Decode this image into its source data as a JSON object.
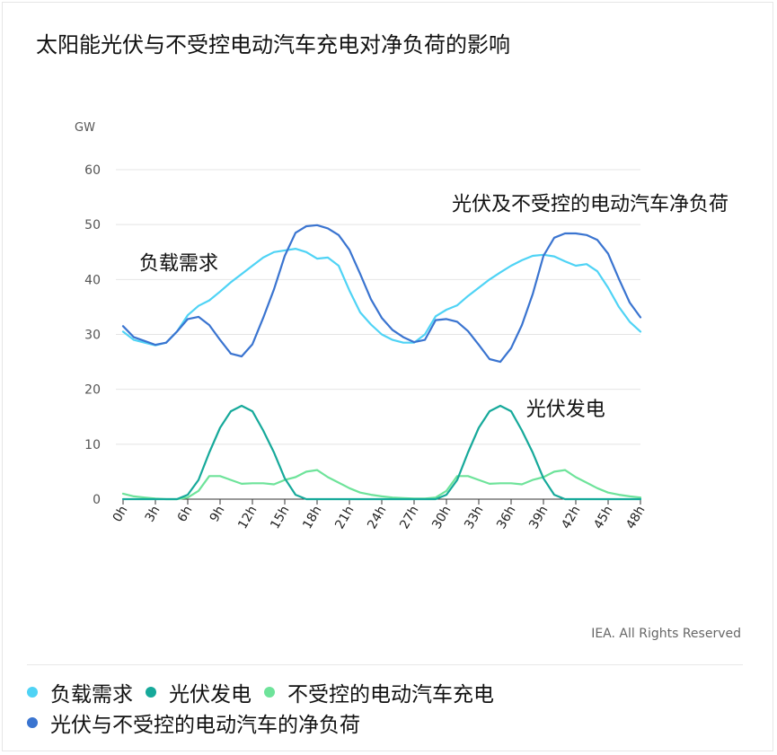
{
  "title": "太阳能光伏与不受控电动汽车充电对净负荷的影响",
  "credit": "IEA. All Rights Reserved",
  "legend": [
    {
      "label": "负载需求",
      "color": "#4fd3f5"
    },
    {
      "label": "光伏发电",
      "color": "#16a99a"
    },
    {
      "label": "不受控的电动汽车充电",
      "color": "#6ee39a"
    },
    {
      "label": "光伏与不受控的电动汽车的净负荷",
      "color": "#3a74d0"
    }
  ],
  "chart_data": {
    "type": "line",
    "ylabel": "GW",
    "ylim": [
      0,
      60
    ],
    "yticks": [
      0,
      10,
      20,
      30,
      40,
      50,
      60
    ],
    "xlim": [
      0,
      48
    ],
    "xticks": [
      "0h",
      "3h",
      "6h",
      "9h",
      "12h",
      "15h",
      "18h",
      "21h",
      "24h",
      "27h",
      "30h",
      "33h",
      "36h",
      "39h",
      "42h",
      "45h",
      "48h"
    ],
    "grid": true,
    "annotations": [
      {
        "text": "光伏及不受控的电动汽车净负荷",
        "x": 30.5,
        "y": 52.6
      },
      {
        "text": "负载需求",
        "x": 1.5,
        "y": 41.8
      },
      {
        "text": "光伏发电",
        "x": 37.4,
        "y": 15.2
      }
    ],
    "series": [
      {
        "name": "负载需求",
        "color": "#4fd3f5",
        "x": [
          0,
          1,
          2,
          3,
          4,
          5,
          6,
          7,
          8,
          9,
          10,
          11,
          12,
          13,
          14,
          15,
          16,
          17,
          18,
          19,
          20,
          21,
          22,
          23,
          24,
          25,
          26,
          27,
          28,
          29,
          30,
          31,
          32,
          33,
          34,
          35,
          36,
          37,
          38,
          39,
          40,
          41,
          42,
          43,
          44,
          45,
          46,
          47,
          48
        ],
        "values": [
          30.5,
          29,
          28.5,
          28,
          28.5,
          30.5,
          33.5,
          35.2,
          36.2,
          37.8,
          39.5,
          41,
          42.5,
          44,
          45,
          45.3,
          45.6,
          45,
          43.8,
          44,
          42.5,
          38,
          34,
          31.8,
          30,
          29,
          28.5,
          28.5,
          30,
          33.3,
          34.5,
          35.3,
          37,
          38.5,
          40,
          41.3,
          42.5,
          43.5,
          44.3,
          44.5,
          44.2,
          43.3,
          42.5,
          42.8,
          41.5,
          38.5,
          35,
          32.3,
          30.5
        ]
      },
      {
        "name": "光伏发电",
        "color": "#16a99a",
        "x": [
          0,
          1,
          2,
          3,
          4,
          5,
          6,
          7,
          8,
          9,
          10,
          11,
          12,
          13,
          14,
          15,
          16,
          17,
          18,
          19,
          20,
          21,
          22,
          23,
          24,
          25,
          26,
          27,
          28,
          29,
          30,
          31,
          32,
          33,
          34,
          35,
          36,
          37,
          38,
          39,
          40,
          41,
          42,
          43,
          44,
          45,
          46,
          47,
          48
        ],
        "values": [
          0,
          0,
          0,
          0,
          0,
          0,
          0.8,
          3.5,
          8.5,
          13,
          16,
          17,
          16,
          12.5,
          8.5,
          3.8,
          0.8,
          0,
          0,
          0,
          0,
          0,
          0,
          0,
          0,
          0,
          0,
          0,
          0,
          0,
          0.8,
          3.5,
          8.5,
          13,
          16,
          17,
          16,
          12.5,
          8.5,
          3.8,
          0.8,
          0,
          0,
          0,
          0,
          0,
          0,
          0,
          0
        ]
      },
      {
        "name": "不受控的电动汽车充电",
        "color": "#6ee39a",
        "x": [
          0,
          1,
          2,
          3,
          4,
          5,
          6,
          7,
          8,
          9,
          10,
          11,
          12,
          13,
          14,
          15,
          16,
          17,
          18,
          19,
          20,
          21,
          22,
          23,
          24,
          25,
          26,
          27,
          28,
          29,
          30,
          31,
          32,
          33,
          34,
          35,
          36,
          37,
          38,
          39,
          40,
          41,
          42,
          43,
          44,
          45,
          46,
          47,
          48
        ],
        "values": [
          1,
          0.5,
          0.3,
          0.1,
          0,
          0,
          0.3,
          1.5,
          4.2,
          4.2,
          3.5,
          2.8,
          2.9,
          2.9,
          2.7,
          3.5,
          4,
          5,
          5.3,
          4,
          3,
          2,
          1.2,
          0.8,
          0.5,
          0.3,
          0.2,
          0.1,
          0.1,
          0.3,
          1.5,
          4.2,
          4.2,
          3.5,
          2.8,
          2.9,
          2.9,
          2.7,
          3.5,
          4,
          5,
          5.3,
          4,
          3,
          2,
          1.2,
          0.8,
          0.5,
          0.3
        ]
      },
      {
        "name": "光伏与不受控的电动汽车的净负荷",
        "color": "#3a74d0",
        "x": [
          0,
          1,
          2,
          3,
          4,
          5,
          6,
          7,
          8,
          9,
          10,
          11,
          12,
          13,
          14,
          15,
          16,
          17,
          18,
          19,
          20,
          21,
          22,
          23,
          24,
          25,
          26,
          27,
          28,
          29,
          30,
          31,
          32,
          33,
          34,
          35,
          36,
          37,
          38,
          39,
          40,
          41,
          42,
          43,
          44,
          45,
          46,
          47,
          48
        ],
        "values": [
          31.5,
          29.5,
          28.8,
          28.1,
          28.5,
          30.5,
          32.8,
          33.2,
          31.7,
          29,
          26.5,
          26,
          28.2,
          33,
          38.2,
          44.3,
          48.5,
          49.7,
          49.9,
          49.3,
          48.1,
          45.4,
          41,
          36.4,
          33,
          30.8,
          29.5,
          28.6,
          29,
          32.6,
          32.8,
          32.3,
          30.6,
          28.1,
          25.5,
          25,
          27.5,
          31.7,
          37.3,
          44.3,
          47.6,
          48.4,
          48.4,
          48.1,
          47.2,
          44.7,
          40.1,
          35.8,
          33.1
        ]
      }
    ]
  }
}
